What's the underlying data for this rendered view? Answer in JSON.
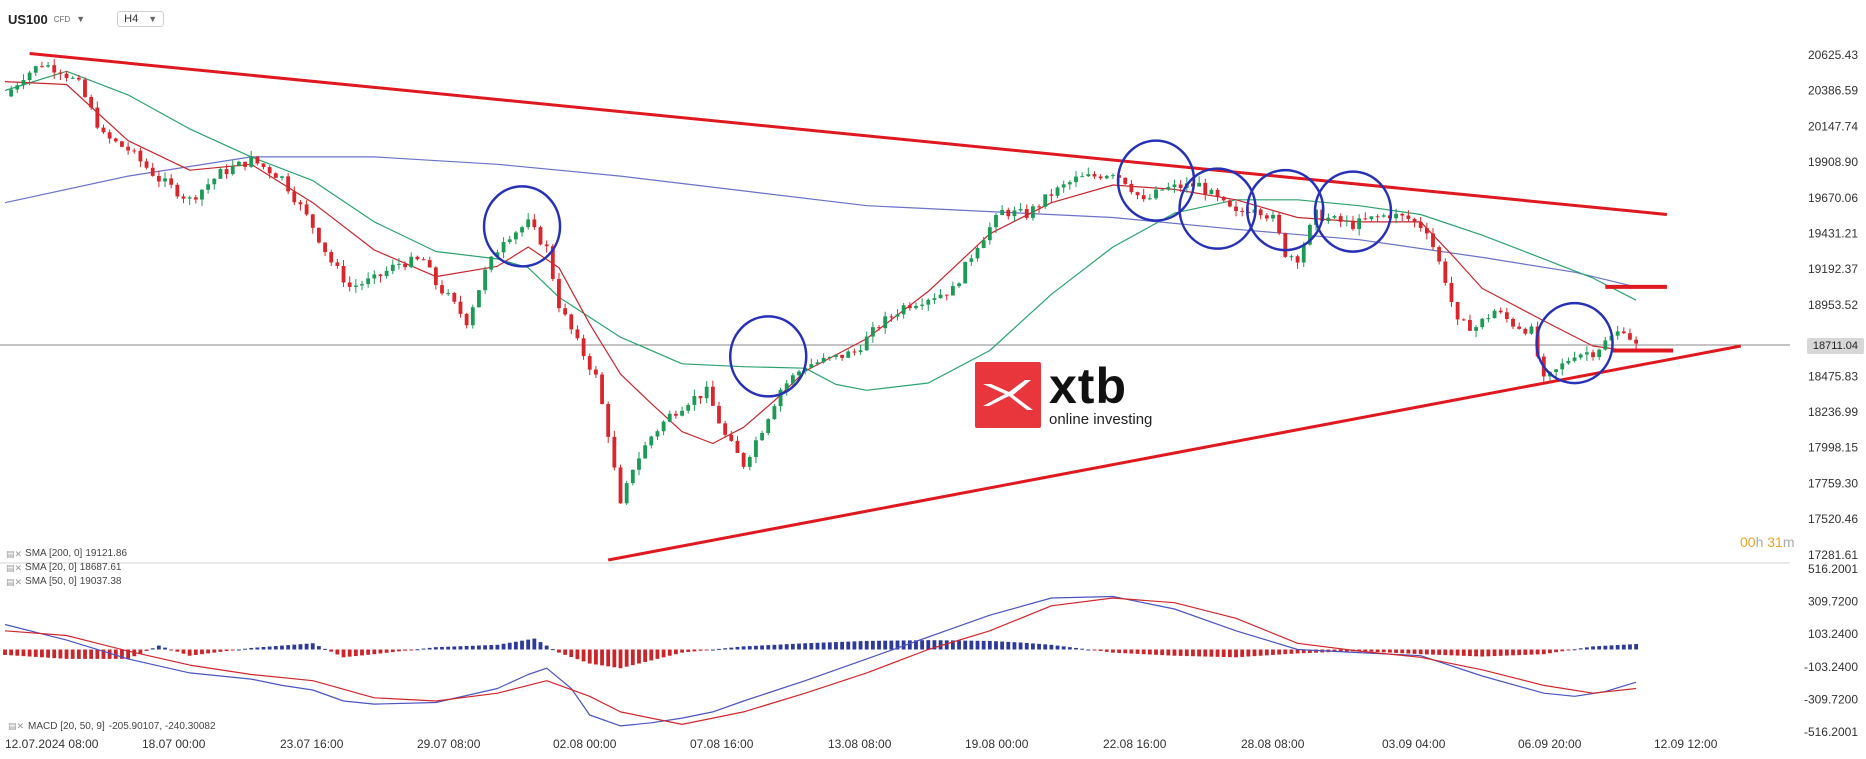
{
  "toolbar": {
    "symbol": "US100",
    "instrument_type": "CFD",
    "timeframe": "H4"
  },
  "current_price": "18711.04",
  "countdown": {
    "hours": "00",
    "hours_unit": "h",
    "minutes": "31",
    "minutes_unit": "m"
  },
  "logo": {
    "word": "xtb",
    "tagline": "online investing",
    "color": "#e8363c"
  },
  "indicators": [
    {
      "label": "SMA [200,  0]",
      "value": "19121.86",
      "color": "#5a63c8"
    },
    {
      "label": "SMA [20,  0]",
      "value": "18687.61",
      "color": "#c8262b"
    },
    {
      "label": "SMA [50,  0]",
      "value": "19037.38",
      "color": "#2aa36f"
    }
  ],
  "macd_legend": {
    "label": "MACD [20,  50,  9]",
    "values": "-205.90107,   -240.30082"
  },
  "colors": {
    "bull": "#1c9b56",
    "bear": "#d9262c",
    "trendline": "#e0181f",
    "circle": "#2631b8",
    "macd_hist_pos": "#2d3a9c",
    "macd_hist_neg": "#c8262b"
  },
  "chart_data": [
    {
      "type": "candlestick",
      "price_axis_ticks": [
        "20625.43",
        "20386.59",
        "20147.74",
        "19908.90",
        "19670.06",
        "19431.21",
        "19192.37",
        "18953.52",
        "18711.04",
        "18475.83",
        "18236.99",
        "17998.15",
        "17759.30",
        "17520.46",
        "17281.61"
      ],
      "time_axis_labels": [
        "12.07.2024  08:00",
        "18.07  00:00",
        "23.07  16:00",
        "29.07  08:00",
        "02.08  00:00",
        "07.08  16:00",
        "13.08  08:00",
        "19.08  00:00",
        "22.08  16:00",
        "28.08  08:00",
        "03.09  04:00",
        "06.09  20:00",
        "12.09  12:00"
      ],
      "ylim": [
        17281.61,
        20700
      ],
      "close_path": [
        [
          0,
          20420
        ],
        [
          3,
          20560
        ],
        [
          6,
          20640
        ],
        [
          9,
          20600
        ],
        [
          12,
          20500
        ],
        [
          16,
          20150
        ],
        [
          20,
          20060
        ],
        [
          25,
          19860
        ],
        [
          30,
          19720
        ],
        [
          35,
          19900
        ],
        [
          40,
          19990
        ],
        [
          45,
          19870
        ],
        [
          50,
          19540
        ],
        [
          53,
          19300
        ],
        [
          56,
          19130
        ],
        [
          60,
          19180
        ],
        [
          64,
          19290
        ],
        [
          68,
          19310
        ],
        [
          70,
          19150
        ],
        [
          72,
          19060
        ],
        [
          75,
          18900
        ],
        [
          78,
          19230
        ],
        [
          81,
          19460
        ],
        [
          85,
          19560
        ],
        [
          88,
          19390
        ],
        [
          90,
          19010
        ],
        [
          93,
          18750
        ],
        [
          96,
          18520
        ],
        [
          98,
          18140
        ],
        [
          100,
          17640
        ],
        [
          102,
          17910
        ],
        [
          105,
          18120
        ],
        [
          108,
          18260
        ],
        [
          111,
          18360
        ],
        [
          114,
          18420
        ],
        [
          117,
          18120
        ],
        [
          120,
          17930
        ],
        [
          123,
          18170
        ],
        [
          126,
          18440
        ],
        [
          130,
          18600
        ],
        [
          134,
          18640
        ],
        [
          138,
          18690
        ],
        [
          142,
          18870
        ],
        [
          146,
          19000
        ],
        [
          150,
          19060
        ],
        [
          154,
          19110
        ],
        [
          158,
          19420
        ],
        [
          162,
          19640
        ],
        [
          166,
          19620
        ],
        [
          170,
          19760
        ],
        [
          174,
          19860
        ],
        [
          177,
          19880
        ],
        [
          180,
          19910
        ],
        [
          182,
          19850
        ],
        [
          185,
          19700
        ],
        [
          188,
          19790
        ],
        [
          191,
          19810
        ],
        [
          194,
          19820
        ],
        [
          197,
          19720
        ],
        [
          200,
          19620
        ],
        [
          203,
          19680
        ],
        [
          206,
          19590
        ],
        [
          208,
          19360
        ],
        [
          210,
          19330
        ],
        [
          213,
          19620
        ],
        [
          216,
          19580
        ],
        [
          219,
          19550
        ],
        [
          222,
          19590
        ],
        [
          225,
          19620
        ],
        [
          228,
          19590
        ],
        [
          231,
          19520
        ],
        [
          234,
          19180
        ],
        [
          236,
          18880
        ],
        [
          239,
          18860
        ],
        [
          242,
          18970
        ],
        [
          245,
          18880
        ],
        [
          248,
          18830
        ],
        [
          250,
          18490
        ],
        [
          252,
          18560
        ],
        [
          255,
          18680
        ],
        [
          258,
          18690
        ],
        [
          261,
          18790
        ],
        [
          263,
          18850
        ],
        [
          265,
          18730
        ]
      ],
      "sma_200": [
        [
          0,
          19700
        ],
        [
          20,
          19880
        ],
        [
          40,
          20010
        ],
        [
          60,
          20010
        ],
        [
          80,
          19960
        ],
        [
          100,
          19880
        ],
        [
          120,
          19780
        ],
        [
          140,
          19680
        ],
        [
          150,
          19660
        ],
        [
          160,
          19640
        ],
        [
          180,
          19600
        ],
        [
          200,
          19520
        ],
        [
          220,
          19450
        ],
        [
          240,
          19330
        ],
        [
          255,
          19230
        ],
        [
          265,
          19130
        ]
      ],
      "sma_20": [
        [
          0,
          20520
        ],
        [
          10,
          20500
        ],
        [
          20,
          20120
        ],
        [
          30,
          19920
        ],
        [
          40,
          19960
        ],
        [
          50,
          19700
        ],
        [
          60,
          19380
        ],
        [
          70,
          19200
        ],
        [
          80,
          19270
        ],
        [
          85,
          19400
        ],
        [
          90,
          19260
        ],
        [
          95,
          18880
        ],
        [
          100,
          18540
        ],
        [
          105,
          18340
        ],
        [
          110,
          18150
        ],
        [
          115,
          18070
        ],
        [
          120,
          18180
        ],
        [
          125,
          18360
        ],
        [
          130,
          18560
        ],
        [
          140,
          18780
        ],
        [
          150,
          19100
        ],
        [
          160,
          19490
        ],
        [
          170,
          19700
        ],
        [
          180,
          19820
        ],
        [
          190,
          19790
        ],
        [
          200,
          19720
        ],
        [
          210,
          19600
        ],
        [
          220,
          19570
        ],
        [
          230,
          19570
        ],
        [
          235,
          19350
        ],
        [
          240,
          19120
        ],
        [
          250,
          18900
        ],
        [
          258,
          18730
        ],
        [
          265,
          18690
        ]
      ],
      "sma_50": [
        [
          0,
          20460
        ],
        [
          10,
          20590
        ],
        [
          20,
          20430
        ],
        [
          30,
          20200
        ],
        [
          40,
          20010
        ],
        [
          50,
          19850
        ],
        [
          60,
          19570
        ],
        [
          70,
          19370
        ],
        [
          80,
          19320
        ],
        [
          85,
          19260
        ],
        [
          90,
          19060
        ],
        [
          100,
          18790
        ],
        [
          110,
          18610
        ],
        [
          120,
          18590
        ],
        [
          130,
          18580
        ],
        [
          135,
          18470
        ],
        [
          140,
          18430
        ],
        [
          150,
          18480
        ],
        [
          160,
          18700
        ],
        [
          170,
          19080
        ],
        [
          180,
          19400
        ],
        [
          190,
          19630
        ],
        [
          200,
          19720
        ],
        [
          210,
          19720
        ],
        [
          220,
          19680
        ],
        [
          230,
          19620
        ],
        [
          240,
          19480
        ],
        [
          250,
          19320
        ],
        [
          258,
          19190
        ],
        [
          265,
          19040
        ]
      ],
      "trendline_upper": [
        [
          4,
          20710
        ],
        [
          270,
          19620
        ]
      ],
      "trendline_lower": [
        [
          98,
          17281.61
        ],
        [
          282,
          18730
        ]
      ],
      "resistance_dash": [
        [
          260,
          19130
        ],
        [
          270,
          19130
        ]
      ],
      "support_dash": [
        [
          261,
          18700
        ],
        [
          271,
          18700
        ]
      ],
      "circles": [
        [
          84,
          19540
        ],
        [
          124,
          18660
        ],
        [
          187,
          19850
        ],
        [
          197,
          19660
        ],
        [
          208,
          19650
        ],
        [
          219,
          19640
        ],
        [
          255,
          18750
        ]
      ]
    },
    {
      "type": "macd",
      "axis_ticks": [
        "516.2001",
        "309.7200",
        "103.2400",
        "-103.2400",
        "-309.7200",
        "-516.2001"
      ],
      "ylim": [
        -516.2001,
        516.2001
      ],
      "macd_line": [
        [
          0,
          160
        ],
        [
          10,
          60
        ],
        [
          20,
          -60
        ],
        [
          30,
          -150
        ],
        [
          40,
          -190
        ],
        [
          45,
          -230
        ],
        [
          50,
          -260
        ],
        [
          55,
          -330
        ],
        [
          60,
          -350
        ],
        [
          70,
          -340
        ],
        [
          80,
          -250
        ],
        [
          85,
          -160
        ],
        [
          88,
          -120
        ],
        [
          92,
          -250
        ],
        [
          95,
          -420
        ],
        [
          100,
          -490
        ],
        [
          105,
          -470
        ],
        [
          110,
          -440
        ],
        [
          115,
          -400
        ],
        [
          120,
          -330
        ],
        [
          130,
          -200
        ],
        [
          140,
          -60
        ],
        [
          150,
          80
        ],
        [
          160,
          220
        ],
        [
          170,
          330
        ],
        [
          180,
          340
        ],
        [
          190,
          260
        ],
        [
          200,
          120
        ],
        [
          210,
          0
        ],
        [
          220,
          -20
        ],
        [
          230,
          -40
        ],
        [
          240,
          -170
        ],
        [
          250,
          -280
        ],
        [
          255,
          -300
        ],
        [
          260,
          -270
        ],
        [
          265,
          -210
        ]
      ],
      "signal_line": [
        [
          0,
          120
        ],
        [
          10,
          90
        ],
        [
          20,
          -10
        ],
        [
          30,
          -100
        ],
        [
          40,
          -160
        ],
        [
          50,
          -200
        ],
        [
          60,
          -310
        ],
        [
          70,
          -330
        ],
        [
          80,
          -280
        ],
        [
          88,
          -200
        ],
        [
          95,
          -300
        ],
        [
          100,
          -400
        ],
        [
          110,
          -480
        ],
        [
          120,
          -400
        ],
        [
          130,
          -280
        ],
        [
          140,
          -150
        ],
        [
          150,
          0
        ],
        [
          160,
          120
        ],
        [
          170,
          280
        ],
        [
          180,
          330
        ],
        [
          190,
          300
        ],
        [
          200,
          200
        ],
        [
          210,
          40
        ],
        [
          220,
          -10
        ],
        [
          230,
          -50
        ],
        [
          240,
          -130
        ],
        [
          250,
          -230
        ],
        [
          258,
          -280
        ],
        [
          265,
          -250
        ]
      ],
      "histogram": [
        [
          0,
          -35
        ],
        [
          10,
          -60
        ],
        [
          20,
          -60
        ],
        [
          25,
          25
        ],
        [
          30,
          -40
        ],
        [
          40,
          10
        ],
        [
          50,
          40
        ],
        [
          55,
          -50
        ],
        [
          60,
          -30
        ],
        [
          70,
          15
        ],
        [
          80,
          30
        ],
        [
          86,
          70
        ],
        [
          90,
          -20
        ],
        [
          95,
          -90
        ],
        [
          100,
          -120
        ],
        [
          105,
          -70
        ],
        [
          110,
          -20
        ],
        [
          120,
          20
        ],
        [
          130,
          40
        ],
        [
          140,
          55
        ],
        [
          150,
          60
        ],
        [
          160,
          55
        ],
        [
          165,
          45
        ],
        [
          170,
          30
        ],
        [
          180,
          -20
        ],
        [
          190,
          -40
        ],
        [
          200,
          -50
        ],
        [
          210,
          -25
        ],
        [
          220,
          -10
        ],
        [
          230,
          -30
        ],
        [
          240,
          -45
        ],
        [
          250,
          -30
        ],
        [
          258,
          20
        ],
        [
          265,
          35
        ]
      ]
    }
  ]
}
